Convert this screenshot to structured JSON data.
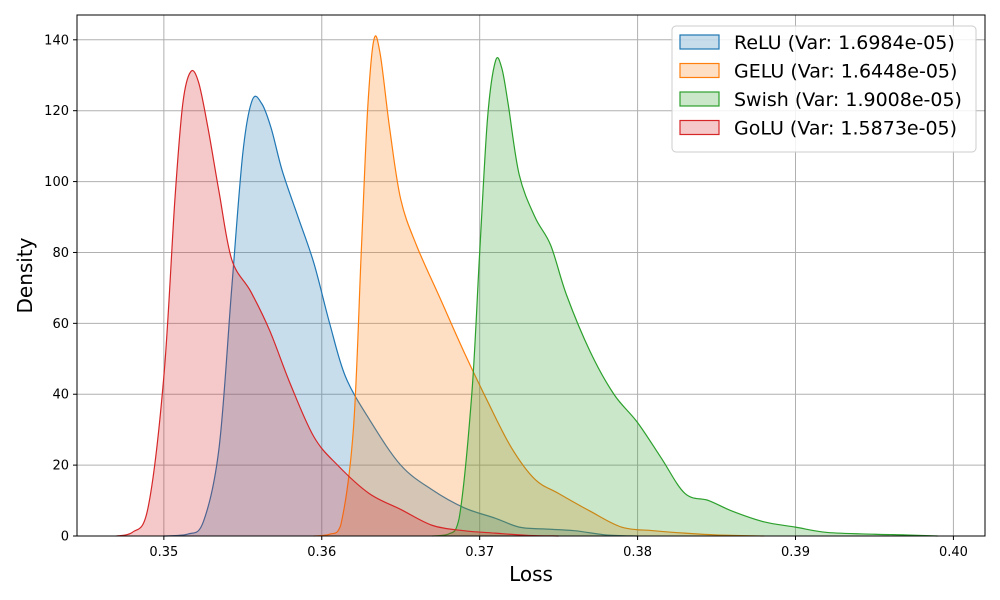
{
  "chart_data": {
    "type": "area",
    "title": "",
    "xlabel": "Loss",
    "ylabel": "Density",
    "xlim": [
      0.3445,
      0.402
    ],
    "ylim": [
      0,
      147
    ],
    "grid": true,
    "legend_position": "top-right",
    "x_ticks": [
      "0.35",
      "0.36",
      "0.37",
      "0.38",
      "0.39",
      "0.40"
    ],
    "x_tick_values": [
      0.35,
      0.36,
      0.37,
      0.38,
      0.39,
      0.4
    ],
    "y_ticks": [
      "0",
      "20",
      "40",
      "60",
      "80",
      "100",
      "120",
      "140"
    ],
    "y_tick_values": [
      0,
      20,
      40,
      60,
      80,
      100,
      120,
      140
    ],
    "series": [
      {
        "name": "ReLU (Var: 1.6984e-05)",
        "color": "#1f77b4",
        "points": [
          [
            0.35,
            0
          ],
          [
            0.3515,
            0.5
          ],
          [
            0.3525,
            4
          ],
          [
            0.3535,
            25
          ],
          [
            0.3543,
            70
          ],
          [
            0.355,
            108
          ],
          [
            0.3556,
            123
          ],
          [
            0.3562,
            122
          ],
          [
            0.3568,
            115
          ],
          [
            0.3575,
            103
          ],
          [
            0.3585,
            90
          ],
          [
            0.3595,
            77
          ],
          [
            0.3605,
            60
          ],
          [
            0.3615,
            45
          ],
          [
            0.363,
            33
          ],
          [
            0.365,
            20
          ],
          [
            0.367,
            13
          ],
          [
            0.369,
            8
          ],
          [
            0.371,
            5
          ],
          [
            0.3725,
            2.5
          ],
          [
            0.374,
            2
          ],
          [
            0.376,
            1.5
          ],
          [
            0.378,
            0.3
          ],
          [
            0.38,
            0
          ]
        ]
      },
      {
        "name": "GELU (Var: 1.6448e-05)",
        "color": "#ff7f0e",
        "points": [
          [
            0.3595,
            0
          ],
          [
            0.3605,
            0.5
          ],
          [
            0.3612,
            3
          ],
          [
            0.362,
            30
          ],
          [
            0.3625,
            80
          ],
          [
            0.3629,
            120
          ],
          [
            0.3633,
            140
          ],
          [
            0.3637,
            136
          ],
          [
            0.3643,
            115
          ],
          [
            0.365,
            95
          ],
          [
            0.366,
            82
          ],
          [
            0.3675,
            67
          ],
          [
            0.369,
            52
          ],
          [
            0.3705,
            38
          ],
          [
            0.372,
            25
          ],
          [
            0.3735,
            16
          ],
          [
            0.375,
            12
          ],
          [
            0.377,
            7
          ],
          [
            0.379,
            2.5
          ],
          [
            0.381,
            1.5
          ],
          [
            0.383,
            0.8
          ],
          [
            0.385,
            0.3
          ],
          [
            0.388,
            0
          ]
        ]
      },
      {
        "name": "Swish (Var: 1.9008e-05)",
        "color": "#2ca02c",
        "points": [
          [
            0.367,
            0
          ],
          [
            0.368,
            0.5
          ],
          [
            0.3687,
            5
          ],
          [
            0.3695,
            40
          ],
          [
            0.37,
            80
          ],
          [
            0.3705,
            118
          ],
          [
            0.371,
            134
          ],
          [
            0.3714,
            132
          ],
          [
            0.3718,
            122
          ],
          [
            0.3725,
            102
          ],
          [
            0.3735,
            90
          ],
          [
            0.3745,
            82
          ],
          [
            0.3755,
            68
          ],
          [
            0.377,
            52
          ],
          [
            0.3785,
            40
          ],
          [
            0.38,
            32
          ],
          [
            0.3815,
            22
          ],
          [
            0.383,
            12
          ],
          [
            0.3845,
            10
          ],
          [
            0.386,
            7
          ],
          [
            0.388,
            4
          ],
          [
            0.39,
            2.5
          ],
          [
            0.392,
            1
          ],
          [
            0.395,
            0.5
          ],
          [
            0.397,
            0.3
          ],
          [
            0.399,
            0
          ]
        ]
      },
      {
        "name": "GoLU (Var: 1.5873e-05)",
        "color": "#d62728",
        "points": [
          [
            0.347,
            0
          ],
          [
            0.348,
            1
          ],
          [
            0.349,
            8
          ],
          [
            0.35,
            45
          ],
          [
            0.3507,
            95
          ],
          [
            0.3512,
            122
          ],
          [
            0.3517,
            131
          ],
          [
            0.3522,
            128
          ],
          [
            0.3528,
            115
          ],
          [
            0.3535,
            97
          ],
          [
            0.3543,
            78
          ],
          [
            0.3555,
            69
          ],
          [
            0.3567,
            58
          ],
          [
            0.358,
            43
          ],
          [
            0.3595,
            28
          ],
          [
            0.361,
            20
          ],
          [
            0.363,
            12
          ],
          [
            0.365,
            7.5
          ],
          [
            0.367,
            3
          ],
          [
            0.369,
            1.5
          ],
          [
            0.371,
            0.8
          ],
          [
            0.373,
            0.2
          ],
          [
            0.375,
            0
          ]
        ]
      }
    ]
  }
}
